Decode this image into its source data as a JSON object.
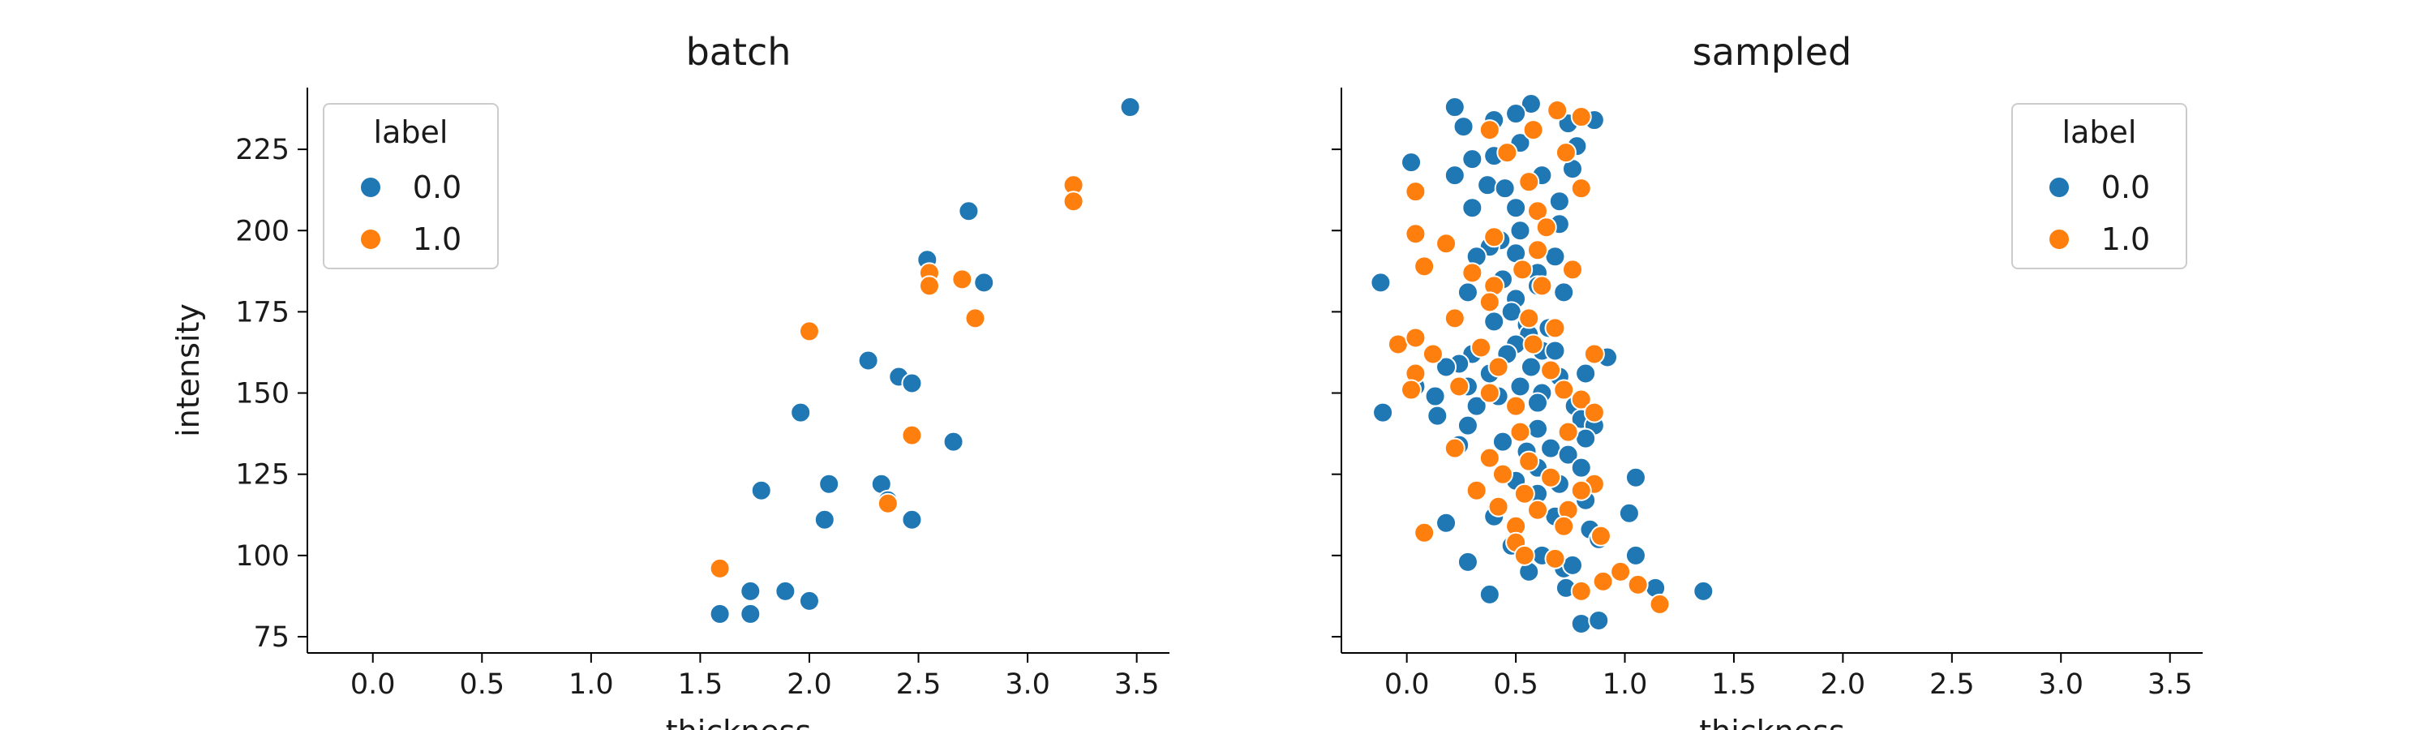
{
  "chart_data": [
    {
      "type": "scatter",
      "title": "batch",
      "xlabel": "thickness",
      "ylabel": "intensity",
      "xlim": [
        -0.3,
        3.65
      ],
      "ylim": [
        70,
        244
      ],
      "xticks": [
        "0.0",
        "0.5",
        "1.0",
        "1.5",
        "2.0",
        "2.5",
        "3.0",
        "3.5"
      ],
      "yticks": [
        "75",
        "100",
        "125",
        "150",
        "175",
        "200",
        "225"
      ],
      "legend": {
        "title": "label",
        "position": "top-left"
      },
      "series": [
        {
          "name": "0.0",
          "color": "#1f77b4",
          "points": [
            [
              3.47,
              238
            ],
            [
              2.73,
              206
            ],
            [
              2.8,
              184
            ],
            [
              2.54,
              191
            ],
            [
              2.27,
              160
            ],
            [
              2.41,
              155
            ],
            [
              2.47,
              153
            ],
            [
              1.96,
              144
            ],
            [
              2.66,
              135
            ],
            [
              1.78,
              120
            ],
            [
              2.09,
              122
            ],
            [
              2.33,
              122
            ],
            [
              2.36,
              117
            ],
            [
              2.07,
              111
            ],
            [
              2.47,
              111
            ],
            [
              1.59,
              82
            ],
            [
              1.73,
              82
            ],
            [
              1.73,
              89
            ],
            [
              1.89,
              89
            ],
            [
              2.0,
              86
            ]
          ]
        },
        {
          "name": "1.0",
          "color": "#ff7f0e",
          "points": [
            [
              3.21,
              214
            ],
            [
              3.21,
              209
            ],
            [
              2.55,
              187
            ],
            [
              2.55,
              183
            ],
            [
              2.7,
              185
            ],
            [
              2.76,
              173
            ],
            [
              2.0,
              169
            ],
            [
              2.47,
              137
            ],
            [
              2.36,
              116
            ],
            [
              1.59,
              96
            ]
          ]
        }
      ]
    },
    {
      "type": "scatter",
      "title": "sampled",
      "xlabel": "thickness",
      "ylabel": "",
      "xlim": [
        -0.3,
        3.65
      ],
      "ylim": [
        70,
        244
      ],
      "xticks": [
        "0.0",
        "0.5",
        "1.0",
        "1.5",
        "2.0",
        "2.5",
        "3.0",
        "3.5"
      ],
      "yticks": [],
      "legend": {
        "title": "label",
        "position": "top-right"
      },
      "series": [
        {
          "name": "0.0",
          "color": "#1f77b4",
          "points": [
            [
              0.22,
              238
            ],
            [
              0.57,
              239
            ],
            [
              0.5,
              236
            ],
            [
              0.26,
              232
            ],
            [
              0.4,
              234
            ],
            [
              0.74,
              233
            ],
            [
              0.86,
              234
            ],
            [
              0.78,
              226
            ],
            [
              0.52,
              227
            ],
            [
              0.02,
              221
            ],
            [
              0.4,
              223
            ],
            [
              0.3,
              222
            ],
            [
              0.76,
              219
            ],
            [
              0.22,
              217
            ],
            [
              0.62,
              217
            ],
            [
              0.37,
              214
            ],
            [
              0.45,
              213
            ],
            [
              0.3,
              207
            ],
            [
              0.5,
              207
            ],
            [
              0.7,
              209
            ],
            [
              0.52,
              200
            ],
            [
              0.43,
              197
            ],
            [
              0.7,
              202
            ],
            [
              0.38,
              195
            ],
            [
              0.32,
              192
            ],
            [
              0.5,
              193
            ],
            [
              0.68,
              192
            ],
            [
              0.6,
              187
            ],
            [
              0.44,
              185
            ],
            [
              -0.12,
              184
            ],
            [
              0.28,
              181
            ],
            [
              0.5,
              179
            ],
            [
              0.6,
              183
            ],
            [
              0.72,
              181
            ],
            [
              0.48,
              175
            ],
            [
              0.55,
              171
            ],
            [
              0.4,
              172
            ],
            [
              0.56,
              168
            ],
            [
              0.65,
              170
            ],
            [
              0.5,
              165
            ],
            [
              0.62,
              163
            ],
            [
              0.3,
              162
            ],
            [
              0.46,
              162
            ],
            [
              0.68,
              163
            ],
            [
              0.92,
              161
            ],
            [
              0.24,
              159
            ],
            [
              0.18,
              158
            ],
            [
              0.57,
              158
            ],
            [
              0.38,
              156
            ],
            [
              0.82,
              156
            ],
            [
              0.7,
              155
            ],
            [
              0.28,
              152
            ],
            [
              0.52,
              152
            ],
            [
              0.62,
              150
            ],
            [
              0.42,
              149
            ],
            [
              0.6,
              147
            ],
            [
              0.77,
              146
            ],
            [
              0.13,
              149
            ],
            [
              0.04,
              152
            ],
            [
              0.32,
              146
            ],
            [
              -0.11,
              144
            ],
            [
              0.14,
              143
            ],
            [
              0.8,
              142
            ],
            [
              0.28,
              140
            ],
            [
              0.6,
              139
            ],
            [
              0.86,
              140
            ],
            [
              0.66,
              133
            ],
            [
              0.44,
              135
            ],
            [
              0.82,
              136
            ],
            [
              0.24,
              134
            ],
            [
              0.55,
              132
            ],
            [
              0.74,
              131
            ],
            [
              0.6,
              127
            ],
            [
              0.8,
              127
            ],
            [
              0.5,
              123
            ],
            [
              1.05,
              124
            ],
            [
              0.7,
              122
            ],
            [
              0.6,
              119
            ],
            [
              0.82,
              117
            ],
            [
              0.68,
              112
            ],
            [
              0.4,
              112
            ],
            [
              1.02,
              113
            ],
            [
              0.18,
              110
            ],
            [
              0.84,
              108
            ],
            [
              0.88,
              105
            ],
            [
              0.48,
              103
            ],
            [
              1.05,
              100
            ],
            [
              0.62,
              100
            ],
            [
              0.28,
              98
            ],
            [
              0.72,
              96
            ],
            [
              0.56,
              95
            ],
            [
              0.76,
              97
            ],
            [
              1.14,
              90
            ],
            [
              0.38,
              88
            ],
            [
              0.73,
              90
            ],
            [
              1.36,
              89
            ],
            [
              0.8,
              79
            ],
            [
              0.88,
              80
            ]
          ]
        },
        {
          "name": "1.0",
          "color": "#ff7f0e",
          "points": [
            [
              0.38,
              231
            ],
            [
              0.69,
              237
            ],
            [
              0.8,
              235
            ],
            [
              0.58,
              231
            ],
            [
              0.46,
              224
            ],
            [
              0.73,
              224
            ],
            [
              0.04,
              212
            ],
            [
              0.56,
              215
            ],
            [
              0.8,
              213
            ],
            [
              0.6,
              206
            ],
            [
              0.64,
              201
            ],
            [
              0.04,
              199
            ],
            [
              0.18,
              196
            ],
            [
              0.4,
              198
            ],
            [
              0.6,
              194
            ],
            [
              0.08,
              189
            ],
            [
              0.3,
              187
            ],
            [
              0.53,
              188
            ],
            [
              0.76,
              188
            ],
            [
              0.4,
              183
            ],
            [
              0.62,
              183
            ],
            [
              0.22,
              173
            ],
            [
              0.38,
              178
            ],
            [
              0.56,
              173
            ],
            [
              0.68,
              170
            ],
            [
              -0.04,
              165
            ],
            [
              0.04,
              167
            ],
            [
              0.12,
              162
            ],
            [
              0.34,
              164
            ],
            [
              0.58,
              165
            ],
            [
              0.86,
              162
            ],
            [
              0.04,
              156
            ],
            [
              0.42,
              158
            ],
            [
              0.66,
              157
            ],
            [
              0.02,
              151
            ],
            [
              0.24,
              152
            ],
            [
              0.38,
              150
            ],
            [
              0.72,
              151
            ],
            [
              0.5,
              146
            ],
            [
              0.8,
              148
            ],
            [
              0.86,
              144
            ],
            [
              0.22,
              133
            ],
            [
              0.52,
              138
            ],
            [
              0.74,
              138
            ],
            [
              0.38,
              130
            ],
            [
              0.56,
              129
            ],
            [
              0.44,
              125
            ],
            [
              0.66,
              124
            ],
            [
              0.86,
              122
            ],
            [
              0.32,
              120
            ],
            [
              0.54,
              119
            ],
            [
              0.8,
              120
            ],
            [
              0.42,
              115
            ],
            [
              0.6,
              114
            ],
            [
              0.74,
              114
            ],
            [
              0.5,
              109
            ],
            [
              0.72,
              109
            ],
            [
              0.08,
              107
            ],
            [
              0.5,
              104
            ],
            [
              0.89,
              106
            ],
            [
              0.68,
              99
            ],
            [
              0.54,
              100
            ],
            [
              0.98,
              95
            ],
            [
              0.8,
              89
            ],
            [
              1.06,
              91
            ],
            [
              0.9,
              92
            ],
            [
              1.16,
              85
            ]
          ]
        }
      ]
    }
  ]
}
